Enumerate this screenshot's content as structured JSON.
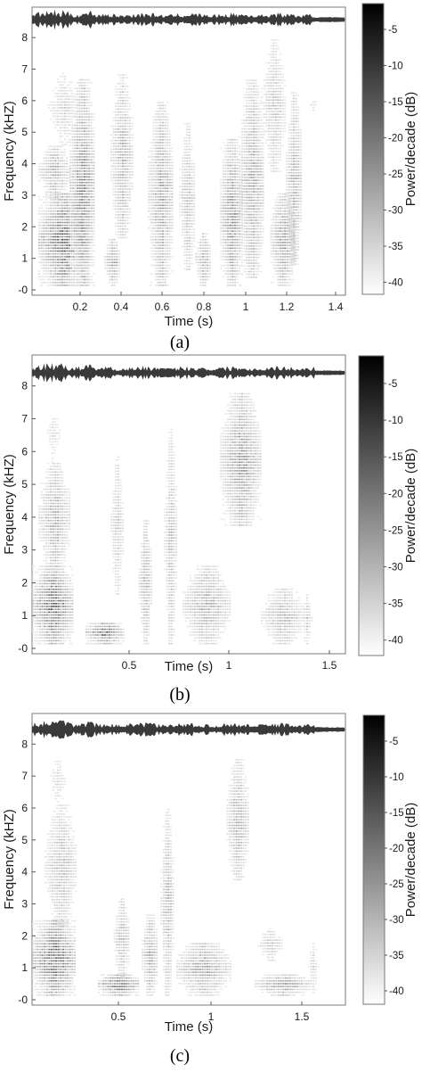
{
  "chart_data": [
    {
      "type": "heatmap",
      "caption": "(a)",
      "xlabel": "Time (s)",
      "ylabel": "Frequency (kHZ)",
      "colorbar_label": "Power/decade (dB)",
      "x_ticks": [
        "0.2",
        "0.4",
        "0.6",
        "0.8",
        "1",
        "1.2",
        "1.4"
      ],
      "y_ticks": [
        "-0",
        "1",
        "2",
        "3",
        "4",
        "5",
        "6",
        "7",
        "8"
      ],
      "colorbar_ticks": [
        "-5",
        "-10",
        "-15",
        "-20",
        "-25",
        "-30",
        "-35",
        "-40"
      ],
      "xlim": [
        0,
        1.45
      ],
      "ylim": [
        -0.1,
        8.4
      ],
      "clim": [
        -42,
        -2
      ],
      "colormap": [
        "#000000",
        "#ffffff"
      ]
    },
    {
      "type": "heatmap",
      "caption": "(b)",
      "xlabel": "Time (s)",
      "ylabel": "Frequency (kHZ)",
      "colorbar_label": "Power/decade (dB)",
      "x_ticks": [
        "0.5",
        "1",
        "1.5"
      ],
      "y_ticks": [
        "-0",
        "1",
        "2",
        "3",
        "4",
        "5",
        "6",
        "7",
        "8"
      ],
      "colorbar_ticks": [
        "-5",
        "-10",
        "-15",
        "-20",
        "-25",
        "-30",
        "-35",
        "-40"
      ],
      "xlim": [
        0,
        1.65
      ],
      "ylim": [
        -0.1,
        8.4
      ],
      "clim": [
        -42,
        -2
      ],
      "colormap": [
        "#000000",
        "#ffffff"
      ]
    },
    {
      "type": "heatmap",
      "caption": "(c)",
      "xlabel": "Time (s)",
      "ylabel": "Frequency (kHZ)",
      "colorbar_label": "Power/decade (dB)",
      "x_ticks": [
        "0.5",
        "1",
        "1.5"
      ],
      "y_ticks": [
        "-0",
        "1",
        "2",
        "3",
        "4",
        "5",
        "6",
        "7",
        "8"
      ],
      "colorbar_ticks": [
        "-5",
        "-10",
        "-15",
        "-20",
        "-25",
        "-30",
        "-35",
        "-40"
      ],
      "xlim": [
        0,
        1.8
      ],
      "ylim": [
        -0.1,
        8.4
      ],
      "clim": [
        -42,
        -2
      ],
      "colormap": [
        "#000000",
        "#ffffff"
      ]
    }
  ]
}
